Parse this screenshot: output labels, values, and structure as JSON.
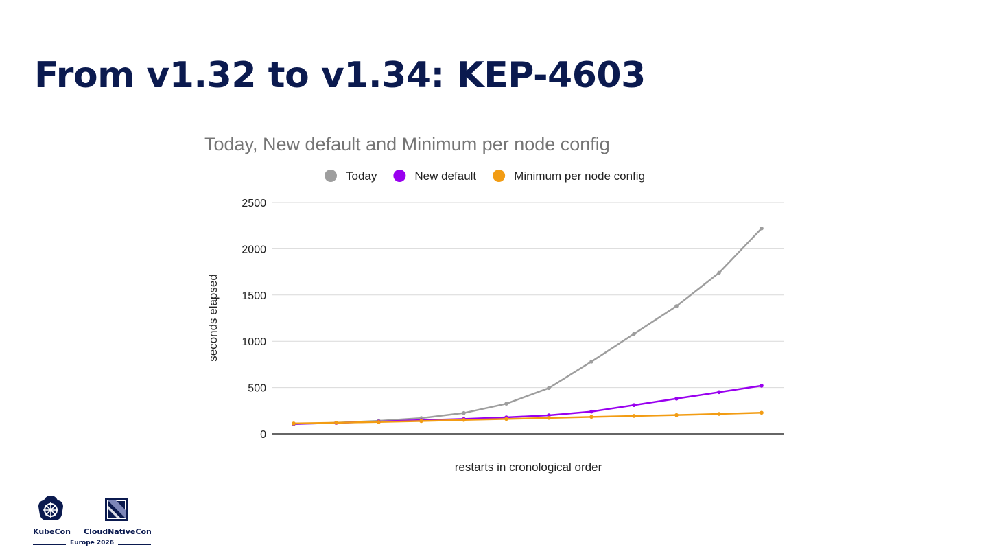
{
  "slide": {
    "title": "From v1.32 to v1.34: KEP-4603"
  },
  "footer": {
    "kubecon_label": "KubeCon",
    "cloudnativecon_label": "CloudNativeCon",
    "event_label": "Europe 2026"
  },
  "chart_data": {
    "type": "line",
    "title": "Today, New default and Minimum per node config",
    "xlabel": "restarts in cronological order",
    "ylabel": "seconds elapsed",
    "ylim": [
      0,
      2500
    ],
    "yticks": [
      0,
      500,
      1000,
      1500,
      2000,
      2500
    ],
    "grid": true,
    "legend_position": "top",
    "x": [
      1,
      2,
      3,
      4,
      5,
      6,
      7,
      8,
      9,
      10,
      11,
      12
    ],
    "series": [
      {
        "name": "Today",
        "color": "#9e9e9e",
        "values": [
          105,
          120,
          140,
          170,
          225,
          325,
          495,
          780,
          1080,
          1380,
          1740,
          2220
        ]
      },
      {
        "name": "New default",
        "color": "#9900ef",
        "values": [
          108,
          118,
          132,
          148,
          160,
          178,
          200,
          240,
          310,
          380,
          450,
          520
        ]
      },
      {
        "name": "Minimum per node config",
        "color": "#f29c13",
        "values": [
          112,
          120,
          128,
          138,
          150,
          160,
          172,
          183,
          193,
          203,
          215,
          228
        ]
      }
    ]
  }
}
